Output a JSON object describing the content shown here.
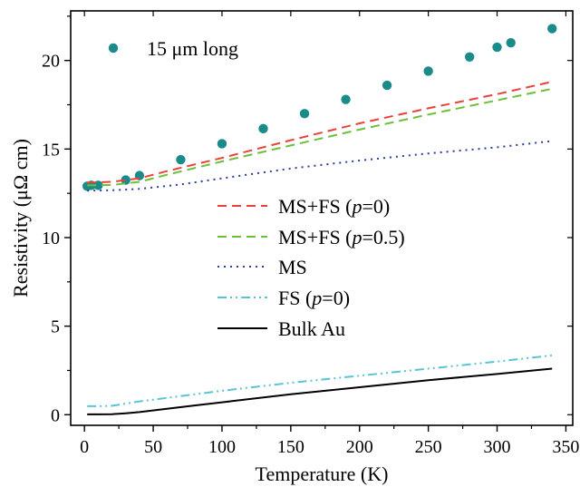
{
  "chart_data": {
    "type": "line",
    "xlabel": "Temperature (K)",
    "ylabel": "Resistivity (μΩ  cm)",
    "xlim": [
      -10,
      355
    ],
    "ylim": [
      -0.6,
      22.8
    ],
    "x_ticks": [
      0,
      50,
      100,
      150,
      200,
      250,
      300,
      350
    ],
    "y_ticks": [
      0,
      5,
      10,
      15,
      20
    ],
    "grid": false,
    "legend_placement": "center-right",
    "series": [
      {
        "name": "15 μm long",
        "kind": "scatter",
        "color": "#1a8a8a",
        "x": [
          2,
          5,
          10,
          30,
          40,
          70,
          100,
          130,
          160,
          190,
          220,
          250,
          280,
          300,
          310,
          340
        ],
        "y": [
          12.9,
          12.95,
          12.95,
          13.25,
          13.5,
          14.4,
          15.3,
          16.15,
          17.0,
          17.8,
          18.6,
          19.4,
          20.2,
          20.75,
          21.0,
          21.8
        ]
      },
      {
        "name": "MS+FS (p=0)",
        "name_prefix": "MS+FS (",
        "name_italic": "p",
        "name_suffix": "=0)",
        "kind": "line",
        "dash": "10,6",
        "color": "#e8423a",
        "x": [
          2,
          20,
          40,
          60,
          100,
          150,
          200,
          250,
          300,
          340
        ],
        "y": [
          13.1,
          13.15,
          13.35,
          13.75,
          14.5,
          15.5,
          16.45,
          17.3,
          18.1,
          18.8
        ]
      },
      {
        "name": "MS+FS (p=0.5)",
        "name_prefix": "MS+FS (",
        "name_italic": "p",
        "name_suffix": "=0.5)",
        "kind": "line",
        "dash": "10,6",
        "color": "#6cbf3a",
        "x": [
          2,
          20,
          40,
          60,
          100,
          150,
          200,
          250,
          300,
          340
        ],
        "y": [
          12.95,
          12.97,
          13.15,
          13.55,
          14.3,
          15.2,
          16.1,
          16.95,
          17.75,
          18.4
        ]
      },
      {
        "name": "MS",
        "kind": "line",
        "dash": "2,5",
        "color": "#2b3d9e",
        "x": [
          2,
          20,
          40,
          70,
          100,
          150,
          200,
          250,
          300,
          340
        ],
        "y": [
          12.65,
          12.67,
          12.75,
          13.0,
          13.35,
          13.9,
          14.35,
          14.75,
          15.1,
          15.45
        ]
      },
      {
        "name": "FS (p=0)",
        "name_prefix": "FS (",
        "name_italic": "p",
        "name_suffix": "=0)",
        "kind": "line",
        "dash": "10,4,2,4,2,4",
        "color": "#5bc4d4",
        "x": [
          2,
          10,
          20,
          40,
          70,
          100,
          150,
          200,
          250,
          300,
          340
        ],
        "y": [
          0.48,
          0.48,
          0.5,
          0.75,
          1.05,
          1.35,
          1.8,
          2.2,
          2.6,
          3.0,
          3.35
        ]
      },
      {
        "name": "Bulk Au",
        "kind": "line",
        "dash": "",
        "color": "#000000",
        "x": [
          2,
          10,
          20,
          30,
          40,
          60,
          80,
          100,
          150,
          200,
          250,
          300,
          340
        ],
        "y": [
          0.02,
          0.02,
          0.03,
          0.08,
          0.15,
          0.33,
          0.52,
          0.7,
          1.15,
          1.55,
          1.95,
          2.3,
          2.6
        ]
      }
    ]
  }
}
